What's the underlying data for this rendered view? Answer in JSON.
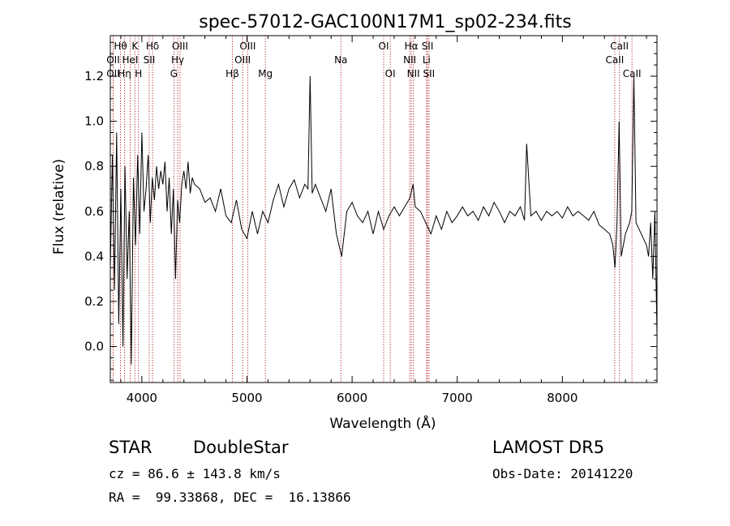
{
  "chart_data": {
    "type": "line",
    "title": "spec-57012-GAC100N17M1_sp02-234.fits",
    "xlabel": "Wavelength (Å)",
    "ylabel": "Flux (relative)",
    "xlim": [
      3700,
      8900
    ],
    "ylim": [
      -0.16,
      1.38
    ],
    "x_ticks": [
      4000,
      5000,
      6000,
      7000,
      8000
    ],
    "x_tick_labels": [
      "4000",
      "5000",
      "6000",
      "7000",
      "8000"
    ],
    "y_ticks": [
      0.0,
      0.2,
      0.4,
      0.6,
      0.8,
      1.0,
      1.2
    ],
    "y_tick_labels": [
      "0.0",
      "0.2",
      "0.4",
      "0.6",
      "0.8",
      "1.0",
      "1.2"
    ],
    "grid": false,
    "series": [
      {
        "x": [
          3700,
          3720,
          3740,
          3760,
          3780,
          3800,
          3820,
          3840,
          3860,
          3880,
          3900,
          3920,
          3940,
          3960,
          3980,
          4000,
          4020,
          4040,
          4060,
          4080,
          4100,
          4120,
          4140,
          4160,
          4180,
          4200,
          4220,
          4240,
          4260,
          4280,
          4300,
          4320,
          4340,
          4360,
          4380,
          4400,
          4420,
          4440,
          4460,
          4480,
          4500,
          4550,
          4600,
          4650,
          4700,
          4750,
          4800,
          4850,
          4900,
          4950,
          5000,
          5050,
          5100,
          5150,
          5200,
          5250,
          5300,
          5350,
          5400,
          5450,
          5500,
          5550,
          5580,
          5600,
          5620,
          5650,
          5700,
          5750,
          5800,
          5850,
          5900,
          5950,
          6000,
          6050,
          6100,
          6150,
          6200,
          6250,
          6300,
          6350,
          6400,
          6450,
          6500,
          6550,
          6580,
          6600,
          6650,
          6700,
          6750,
          6800,
          6850,
          6900,
          6950,
          7000,
          7050,
          7100,
          7150,
          7200,
          7250,
          7300,
          7350,
          7400,
          7450,
          7500,
          7550,
          7600,
          7640,
          7660,
          7700,
          7750,
          7800,
          7850,
          7900,
          7950,
          8000,
          8050,
          8100,
          8150,
          8200,
          8250,
          8300,
          8350,
          8400,
          8450,
          8480,
          8500,
          8520,
          8540,
          8560,
          8600,
          8640,
          8660,
          8680,
          8700,
          8750,
          8800,
          8820,
          8840,
          8860,
          8880,
          8900
        ],
        "y": [
          0.35,
          0.85,
          0.25,
          0.95,
          0.1,
          0.7,
          0.0,
          0.8,
          0.3,
          0.6,
          -0.08,
          0.75,
          0.45,
          0.85,
          0.5,
          0.95,
          0.6,
          0.7,
          0.85,
          0.55,
          0.75,
          0.65,
          0.8,
          0.7,
          0.78,
          0.72,
          0.82,
          0.6,
          0.75,
          0.5,
          0.7,
          0.3,
          0.65,
          0.55,
          0.72,
          0.78,
          0.7,
          0.82,
          0.68,
          0.75,
          0.72,
          0.7,
          0.64,
          0.66,
          0.6,
          0.7,
          0.58,
          0.55,
          0.65,
          0.52,
          0.48,
          0.6,
          0.5,
          0.6,
          0.55,
          0.65,
          0.72,
          0.62,
          0.7,
          0.74,
          0.66,
          0.72,
          0.7,
          1.2,
          0.68,
          0.72,
          0.66,
          0.6,
          0.7,
          0.5,
          0.4,
          0.6,
          0.64,
          0.58,
          0.55,
          0.6,
          0.5,
          0.6,
          0.52,
          0.58,
          0.62,
          0.58,
          0.62,
          0.66,
          0.72,
          0.62,
          0.6,
          0.55,
          0.5,
          0.58,
          0.52,
          0.6,
          0.55,
          0.58,
          0.62,
          0.58,
          0.6,
          0.56,
          0.62,
          0.58,
          0.64,
          0.6,
          0.55,
          0.6,
          0.58,
          0.62,
          0.56,
          0.9,
          0.58,
          0.6,
          0.56,
          0.6,
          0.58,
          0.6,
          0.57,
          0.62,
          0.58,
          0.6,
          0.58,
          0.56,
          0.6,
          0.54,
          0.52,
          0.5,
          0.45,
          0.35,
          0.55,
          1.0,
          0.4,
          0.5,
          0.55,
          0.6,
          1.2,
          0.55,
          0.5,
          0.45,
          0.4,
          0.55,
          0.3,
          0.6,
          0.05
        ]
      }
    ],
    "annotations": [
      {
        "label": "Hθ",
        "x": 3797,
        "row": 0
      },
      {
        "label": "K",
        "x": 3934,
        "row": 0
      },
      {
        "label": "Hδ",
        "x": 4102,
        "row": 0
      },
      {
        "label": "OIII",
        "x": 4363,
        "row": 0
      },
      {
        "label": "OIII",
        "x": 5007,
        "row": 0
      },
      {
        "label": "OI",
        "x": 6300,
        "row": 0
      },
      {
        "label": "Hα",
        "x": 6563,
        "row": 0
      },
      {
        "label": "SII",
        "x": 6717,
        "row": 0
      },
      {
        "label": "CaII",
        "x": 8542,
        "row": 0
      },
      {
        "label": "OII",
        "x": 3727,
        "row": 1
      },
      {
        "label": "HeI",
        "x": 3889,
        "row": 1
      },
      {
        "label": "SII",
        "x": 4070,
        "row": 1
      },
      {
        "label": "Hγ",
        "x": 4341,
        "row": 1
      },
      {
        "label": "OIII",
        "x": 4959,
        "row": 1
      },
      {
        "label": "Na",
        "x": 5893,
        "row": 1
      },
      {
        "label": "NII",
        "x": 6548,
        "row": 1
      },
      {
        "label": "Li",
        "x": 6708,
        "row": 1
      },
      {
        "label": "CaII",
        "x": 8498,
        "row": 1
      },
      {
        "label": "OII",
        "x": 3727,
        "row": 2
      },
      {
        "label": "Hη",
        "x": 3835,
        "row": 2
      },
      {
        "label": "H",
        "x": 3968,
        "row": 2
      },
      {
        "label": "G",
        "x": 4305,
        "row": 2
      },
      {
        "label": "Hβ",
        "x": 4861,
        "row": 2
      },
      {
        "label": "Mg",
        "x": 5175,
        "row": 2
      },
      {
        "label": "OI",
        "x": 6363,
        "row": 2
      },
      {
        "label": "NII",
        "x": 6583,
        "row": 2
      },
      {
        "label": "SII",
        "x": 6731,
        "row": 2
      },
      {
        "label": "CaII",
        "x": 8662,
        "row": 2
      }
    ],
    "line_color": "#000000",
    "marker_line_color": "#b22222"
  },
  "info": {
    "object_class": "STAR",
    "subclass": "DoubleStar",
    "survey": "LAMOST DR5",
    "redshift": "cz = 86.6 ± 143.8 km/s",
    "obs_date": "Obs-Date: 20141220",
    "coords": "RA =  99.33868, DEC =  16.13866"
  }
}
